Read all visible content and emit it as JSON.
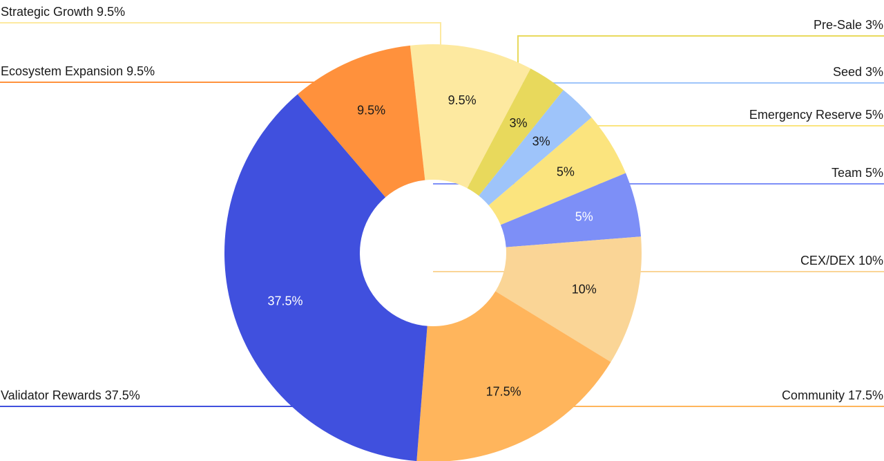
{
  "chart_data": {
    "type": "pie",
    "donut": true,
    "title": "",
    "unit": "%",
    "slices": [
      {
        "name": "Strategic Growth",
        "value": 9.5,
        "label": "9.5%",
        "callout": "Strategic Growth 9.5%",
        "color": "#fde9a0"
      },
      {
        "name": "Pre-Sale",
        "value": 3,
        "label": "3%",
        "callout": "Pre-Sale 3%",
        "color": "#e8d95c"
      },
      {
        "name": "Seed",
        "value": 3,
        "label": "3%",
        "callout": "Seed 3%",
        "color": "#9ec4fa"
      },
      {
        "name": "Emergency Reserve",
        "value": 5,
        "label": "5%",
        "callout": "Emergency Reserve 5%",
        "color": "#fbe47e"
      },
      {
        "name": "Team",
        "value": 5,
        "label": "5%",
        "callout": "Team 5%",
        "color": "#7d8ff7"
      },
      {
        "name": "CEX/DEX",
        "value": 10,
        "label": "10%",
        "callout": "CEX/DEX 10%",
        "color": "#fad596"
      },
      {
        "name": "Community",
        "value": 17.5,
        "label": "17.5%",
        "callout": "Community 17.5%",
        "color": "#ffb55c"
      },
      {
        "name": "Validator Rewards",
        "value": 37.5,
        "label": "37.5%",
        "callout": "Validator Rewards 37.5%",
        "color": "#4050de"
      },
      {
        "name": "Ecosystem Expansion",
        "value": 9.5,
        "label": "9.5%",
        "callout": "Ecosystem Expansion 9.5%",
        "color": "#ff913c"
      }
    ]
  }
}
